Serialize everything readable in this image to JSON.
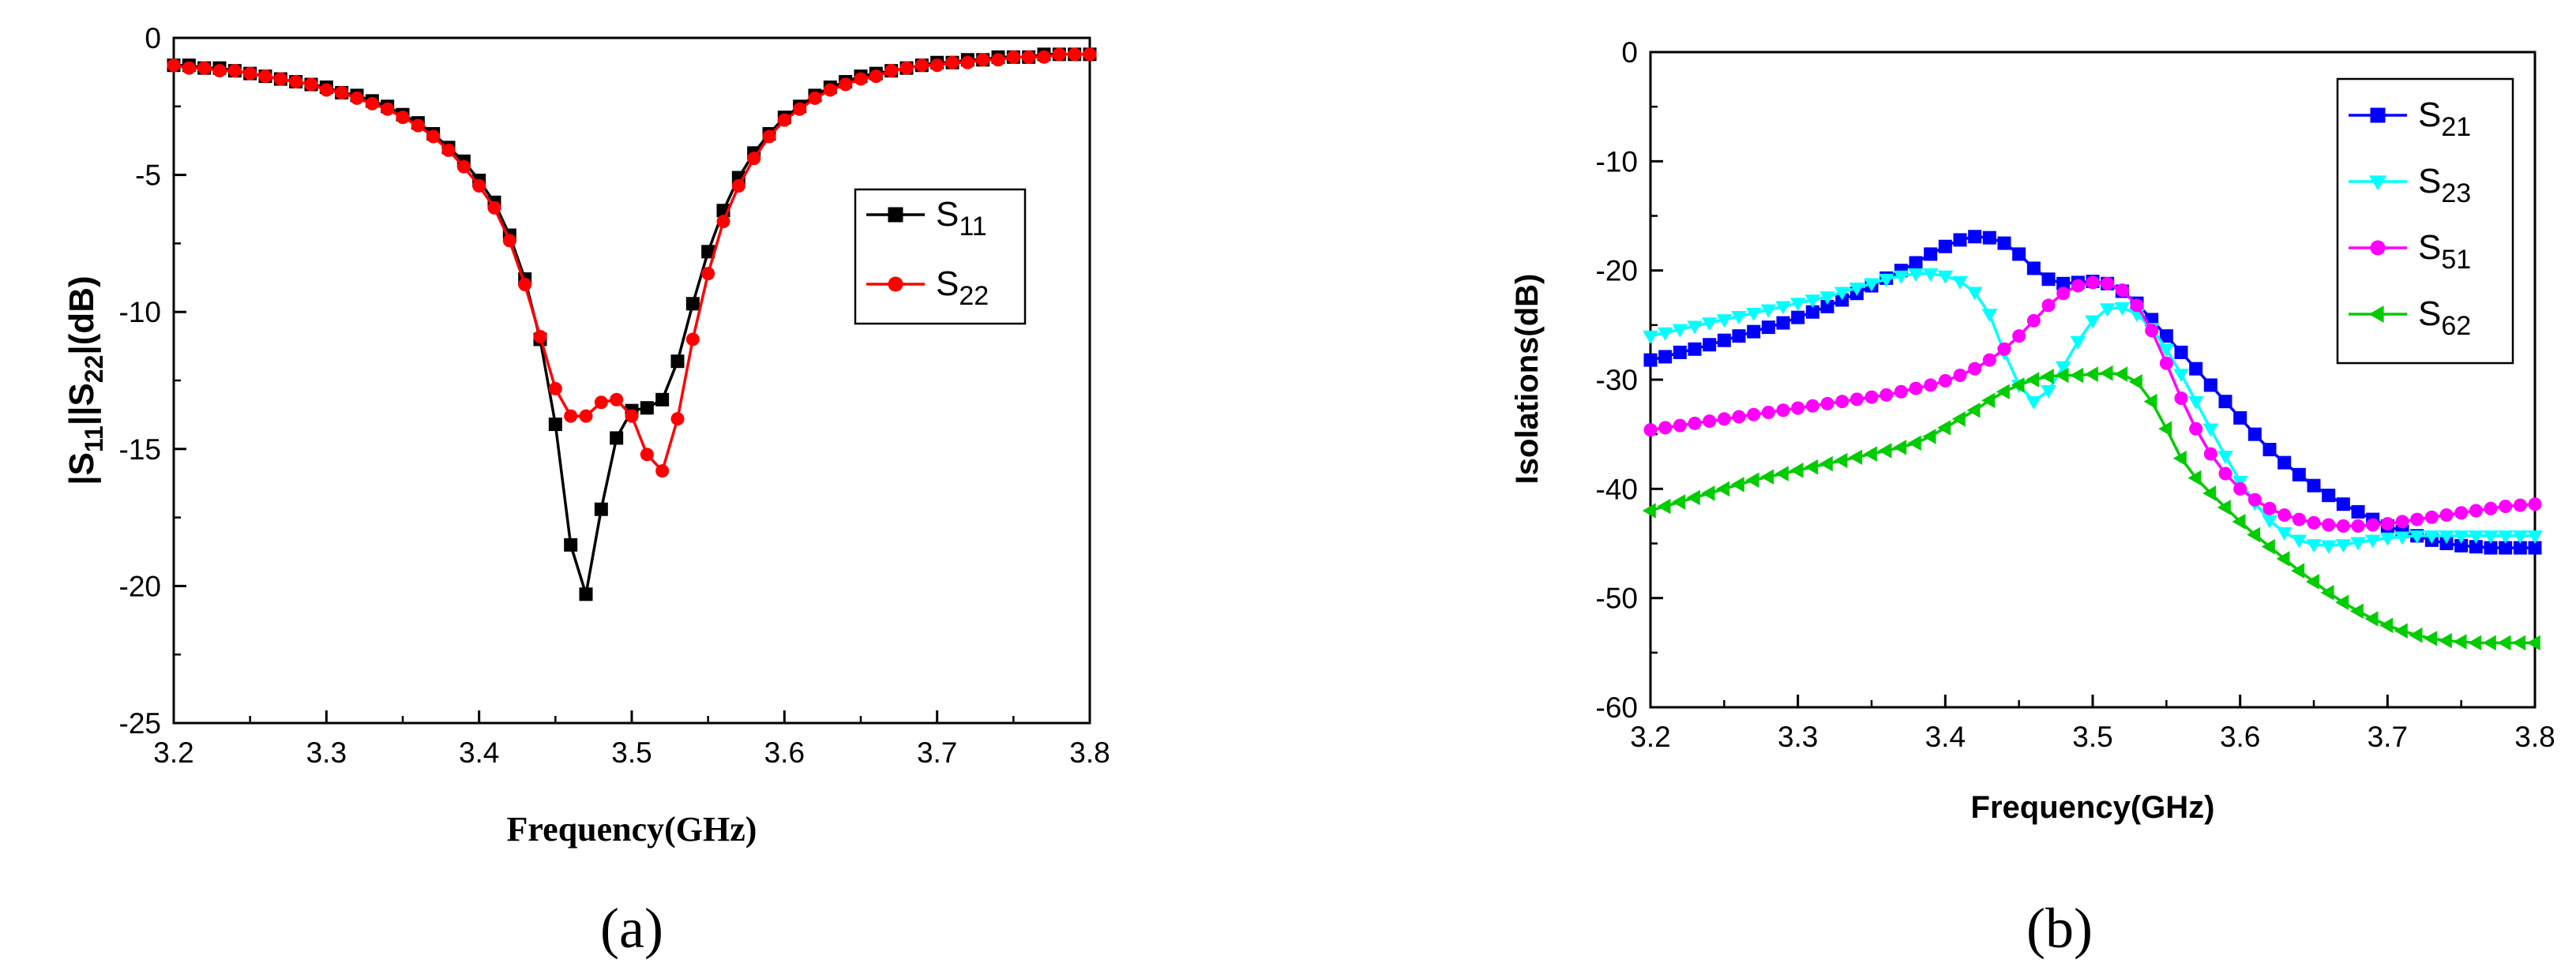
{
  "chart_data": [
    {
      "type": "line",
      "panel_label": "(a)",
      "xlabel": "Frequency(GHz)",
      "ylabel": {
        "main": "|S",
        "sub1": "11",
        "mid": "||S",
        "sub2": "22",
        "tail": "|(dB)"
      },
      "xlim": [
        3.2,
        3.8
      ],
      "ylim": [
        -25,
        0
      ],
      "xticks": [
        "3.2",
        "3.3",
        "3.4",
        "3.5",
        "3.6",
        "3.7",
        "3.8"
      ],
      "yticks": [
        "0",
        "-5",
        "-10",
        "-15",
        "-20",
        "-25"
      ],
      "legend_position": "center-right",
      "series": [
        {
          "name": "S11",
          "label_main": "S",
          "label_sub": "11",
          "color": "#000000",
          "marker": "square",
          "x": [
            3.2,
            3.21,
            3.22,
            3.23,
            3.24,
            3.25,
            3.26,
            3.27,
            3.28,
            3.29,
            3.3,
            3.31,
            3.32,
            3.33,
            3.34,
            3.35,
            3.36,
            3.37,
            3.38,
            3.39,
            3.4,
            3.41,
            3.42,
            3.43,
            3.44,
            3.45,
            3.46,
            3.47,
            3.48,
            3.49,
            3.5,
            3.51,
            3.52,
            3.53,
            3.54,
            3.55,
            3.56,
            3.57,
            3.58,
            3.59,
            3.6,
            3.61,
            3.62,
            3.63,
            3.64,
            3.65,
            3.66,
            3.67,
            3.68,
            3.69,
            3.7,
            3.71,
            3.72,
            3.73,
            3.74,
            3.75,
            3.76,
            3.77,
            3.78,
            3.79,
            3.8
          ],
          "y": [
            -1.0,
            -1.0,
            -1.1,
            -1.1,
            -1.2,
            -1.3,
            -1.4,
            -1.5,
            -1.6,
            -1.7,
            -1.8,
            -2.0,
            -2.1,
            -2.3,
            -2.5,
            -2.8,
            -3.1,
            -3.5,
            -4.0,
            -4.5,
            -5.2,
            -6.0,
            -7.2,
            -8.8,
            -11.0,
            -14.1,
            -18.5,
            -20.3,
            -17.2,
            -14.6,
            -13.6,
            -13.5,
            -13.2,
            -11.8,
            -9.7,
            -7.8,
            -6.3,
            -5.1,
            -4.2,
            -3.5,
            -2.9,
            -2.5,
            -2.1,
            -1.8,
            -1.6,
            -1.4,
            -1.3,
            -1.2,
            -1.1,
            -1.0,
            -0.9,
            -0.9,
            -0.8,
            -0.8,
            -0.7,
            -0.7,
            -0.7,
            -0.6,
            -0.6,
            -0.6,
            -0.6
          ]
        },
        {
          "name": "S22",
          "label_main": "S",
          "label_sub": "22",
          "color": "#ff0000",
          "marker": "circle",
          "x": [
            3.2,
            3.21,
            3.22,
            3.23,
            3.24,
            3.25,
            3.26,
            3.27,
            3.28,
            3.29,
            3.3,
            3.31,
            3.32,
            3.33,
            3.34,
            3.35,
            3.36,
            3.37,
            3.38,
            3.39,
            3.4,
            3.41,
            3.42,
            3.43,
            3.44,
            3.45,
            3.46,
            3.47,
            3.48,
            3.49,
            3.5,
            3.51,
            3.52,
            3.53,
            3.54,
            3.55,
            3.56,
            3.57,
            3.58,
            3.59,
            3.6,
            3.61,
            3.62,
            3.63,
            3.64,
            3.65,
            3.66,
            3.67,
            3.68,
            3.69,
            3.7,
            3.71,
            3.72,
            3.73,
            3.74,
            3.75,
            3.76,
            3.77,
            3.78,
            3.79,
            3.8
          ],
          "y": [
            -1.0,
            -1.1,
            -1.1,
            -1.2,
            -1.2,
            -1.3,
            -1.4,
            -1.5,
            -1.6,
            -1.7,
            -1.9,
            -2.0,
            -2.2,
            -2.4,
            -2.6,
            -2.9,
            -3.2,
            -3.6,
            -4.1,
            -4.7,
            -5.4,
            -6.2,
            -7.4,
            -9.0,
            -10.9,
            -12.8,
            -13.8,
            -13.8,
            -13.3,
            -13.2,
            -13.8,
            -15.2,
            -15.8,
            -13.9,
            -11.0,
            -8.6,
            -6.7,
            -5.4,
            -4.4,
            -3.6,
            -3.0,
            -2.6,
            -2.2,
            -1.9,
            -1.7,
            -1.5,
            -1.4,
            -1.2,
            -1.1,
            -1.0,
            -1.0,
            -0.9,
            -0.9,
            -0.8,
            -0.8,
            -0.7,
            -0.7,
            -0.7,
            -0.6,
            -0.6,
            -0.6
          ]
        }
      ]
    },
    {
      "type": "line",
      "panel_label": "(b)",
      "xlabel": "Frequency(GHz)",
      "ylabel": "Isolations(dB)",
      "xlim": [
        3.2,
        3.8
      ],
      "ylim": [
        -60,
        0
      ],
      "xticks": [
        "3.2",
        "3.3",
        "3.4",
        "3.5",
        "3.6",
        "3.7",
        "3.8"
      ],
      "yticks": [
        "0",
        "-10",
        "-20",
        "-30",
        "-40",
        "-50",
        "-60"
      ],
      "legend_position": "top-right",
      "series": [
        {
          "name": "S21",
          "label_main": "S",
          "label_sub": "21",
          "color": "#0000ff",
          "marker": "square",
          "x": [
            3.2,
            3.21,
            3.22,
            3.23,
            3.24,
            3.25,
            3.26,
            3.27,
            3.28,
            3.29,
            3.3,
            3.31,
            3.32,
            3.33,
            3.34,
            3.35,
            3.36,
            3.37,
            3.38,
            3.39,
            3.4,
            3.41,
            3.42,
            3.43,
            3.44,
            3.45,
            3.46,
            3.47,
            3.48,
            3.49,
            3.5,
            3.51,
            3.52,
            3.53,
            3.54,
            3.55,
            3.56,
            3.57,
            3.58,
            3.59,
            3.6,
            3.61,
            3.62,
            3.63,
            3.64,
            3.65,
            3.66,
            3.67,
            3.68,
            3.69,
            3.7,
            3.71,
            3.72,
            3.73,
            3.74,
            3.75,
            3.76,
            3.77,
            3.78,
            3.79,
            3.8
          ],
          "y": [
            -28.2,
            -27.9,
            -27.5,
            -27.2,
            -26.8,
            -26.4,
            -26.0,
            -25.6,
            -25.2,
            -24.8,
            -24.3,
            -23.8,
            -23.3,
            -22.7,
            -22.1,
            -21.4,
            -20.7,
            -20.0,
            -19.3,
            -18.5,
            -17.8,
            -17.2,
            -16.9,
            -17.0,
            -17.5,
            -18.5,
            -19.8,
            -20.8,
            -21.2,
            -21.1,
            -21.0,
            -21.2,
            -21.9,
            -23.0,
            -24.5,
            -26.0,
            -27.5,
            -29.0,
            -30.5,
            -32.0,
            -33.5,
            -35.0,
            -36.4,
            -37.6,
            -38.7,
            -39.7,
            -40.6,
            -41.4,
            -42.1,
            -42.8,
            -43.4,
            -43.9,
            -44.3,
            -44.7,
            -45.0,
            -45.2,
            -45.3,
            -45.4,
            -45.4,
            -45.4,
            -45.4
          ]
        },
        {
          "name": "S23",
          "label_main": "S",
          "label_sub": "23",
          "color": "#00ffff",
          "marker": "triangle-down",
          "x": [
            3.2,
            3.21,
            3.22,
            3.23,
            3.24,
            3.25,
            3.26,
            3.27,
            3.28,
            3.29,
            3.3,
            3.31,
            3.32,
            3.33,
            3.34,
            3.35,
            3.36,
            3.37,
            3.38,
            3.39,
            3.4,
            3.41,
            3.42,
            3.43,
            3.44,
            3.45,
            3.46,
            3.47,
            3.48,
            3.49,
            3.5,
            3.51,
            3.52,
            3.53,
            3.54,
            3.55,
            3.56,
            3.57,
            3.58,
            3.59,
            3.6,
            3.61,
            3.62,
            3.63,
            3.64,
            3.65,
            3.66,
            3.67,
            3.68,
            3.69,
            3.7,
            3.71,
            3.72,
            3.73,
            3.74,
            3.75,
            3.76,
            3.77,
            3.78,
            3.79,
            3.8
          ],
          "y": [
            -26.0,
            -25.7,
            -25.4,
            -25.1,
            -24.8,
            -24.5,
            -24.2,
            -23.9,
            -23.6,
            -23.3,
            -23.0,
            -22.7,
            -22.4,
            -22.0,
            -21.6,
            -21.2,
            -20.8,
            -20.5,
            -20.3,
            -20.3,
            -20.5,
            -21.0,
            -22.0,
            -24.0,
            -27.5,
            -30.5,
            -32.0,
            -31.0,
            -28.8,
            -26.5,
            -24.6,
            -23.5,
            -23.4,
            -24.0,
            -25.3,
            -27.2,
            -29.5,
            -32.0,
            -34.5,
            -37.0,
            -39.3,
            -41.3,
            -42.9,
            -44.0,
            -44.7,
            -45.1,
            -45.2,
            -45.1,
            -44.9,
            -44.7,
            -44.5,
            -44.4,
            -44.3,
            -44.3,
            -44.3,
            -44.3,
            -44.3,
            -44.3,
            -44.3,
            -44.3,
            -44.3
          ]
        },
        {
          "name": "S51",
          "label_main": "S",
          "label_sub": "51",
          "color": "#ff00ff",
          "marker": "circle",
          "x": [
            3.2,
            3.21,
            3.22,
            3.23,
            3.24,
            3.25,
            3.26,
            3.27,
            3.28,
            3.29,
            3.3,
            3.31,
            3.32,
            3.33,
            3.34,
            3.35,
            3.36,
            3.37,
            3.38,
            3.39,
            3.4,
            3.41,
            3.42,
            3.43,
            3.44,
            3.45,
            3.46,
            3.47,
            3.48,
            3.49,
            3.5,
            3.51,
            3.52,
            3.53,
            3.54,
            3.55,
            3.56,
            3.57,
            3.58,
            3.59,
            3.6,
            3.61,
            3.62,
            3.63,
            3.64,
            3.65,
            3.66,
            3.67,
            3.68,
            3.69,
            3.7,
            3.71,
            3.72,
            3.73,
            3.74,
            3.75,
            3.76,
            3.77,
            3.78,
            3.79,
            3.8
          ],
          "y": [
            -34.6,
            -34.4,
            -34.2,
            -34.0,
            -33.8,
            -33.6,
            -33.4,
            -33.2,
            -33.0,
            -32.8,
            -32.6,
            -32.4,
            -32.2,
            -32.0,
            -31.8,
            -31.6,
            -31.4,
            -31.1,
            -30.8,
            -30.5,
            -30.1,
            -29.6,
            -29.0,
            -28.2,
            -27.2,
            -26.0,
            -24.6,
            -23.2,
            -22.1,
            -21.4,
            -21.1,
            -21.2,
            -21.8,
            -23.2,
            -25.5,
            -28.5,
            -31.7,
            -34.5,
            -36.8,
            -38.6,
            -40.0,
            -41.0,
            -41.8,
            -42.4,
            -42.8,
            -43.1,
            -43.3,
            -43.4,
            -43.4,
            -43.3,
            -43.2,
            -43.0,
            -42.8,
            -42.6,
            -42.4,
            -42.2,
            -42.0,
            -41.8,
            -41.6,
            -41.5,
            -41.4
          ]
        },
        {
          "name": "S62",
          "label_main": "S",
          "label_sub": "62",
          "color": "#00cc00",
          "marker": "triangle-left",
          "x": [
            3.2,
            3.21,
            3.22,
            3.23,
            3.24,
            3.25,
            3.26,
            3.27,
            3.28,
            3.29,
            3.3,
            3.31,
            3.32,
            3.33,
            3.34,
            3.35,
            3.36,
            3.37,
            3.38,
            3.39,
            3.4,
            3.41,
            3.42,
            3.43,
            3.44,
            3.45,
            3.46,
            3.47,
            3.48,
            3.49,
            3.5,
            3.51,
            3.52,
            3.53,
            3.54,
            3.55,
            3.56,
            3.57,
            3.58,
            3.59,
            3.6,
            3.61,
            3.62,
            3.63,
            3.64,
            3.65,
            3.66,
            3.67,
            3.68,
            3.69,
            3.7,
            3.71,
            3.72,
            3.73,
            3.74,
            3.75,
            3.76,
            3.77,
            3.78,
            3.79,
            3.8
          ],
          "y": [
            -42.0,
            -41.6,
            -41.2,
            -40.8,
            -40.4,
            -40.0,
            -39.6,
            -39.2,
            -38.9,
            -38.6,
            -38.3,
            -38.0,
            -37.7,
            -37.4,
            -37.1,
            -36.8,
            -36.5,
            -36.2,
            -35.8,
            -35.2,
            -34.4,
            -33.6,
            -32.8,
            -31.9,
            -31.1,
            -30.5,
            -30.0,
            -29.7,
            -29.6,
            -29.6,
            -29.5,
            -29.4,
            -29.5,
            -30.2,
            -32.0,
            -34.5,
            -37.2,
            -39.0,
            -40.4,
            -41.7,
            -43.0,
            -44.2,
            -45.3,
            -46.4,
            -47.5,
            -48.5,
            -49.5,
            -50.4,
            -51.2,
            -51.9,
            -52.5,
            -53.0,
            -53.4,
            -53.7,
            -53.9,
            -54.0,
            -54.1,
            -54.1,
            -54.1,
            -54.1,
            -54.1
          ]
        }
      ]
    }
  ]
}
